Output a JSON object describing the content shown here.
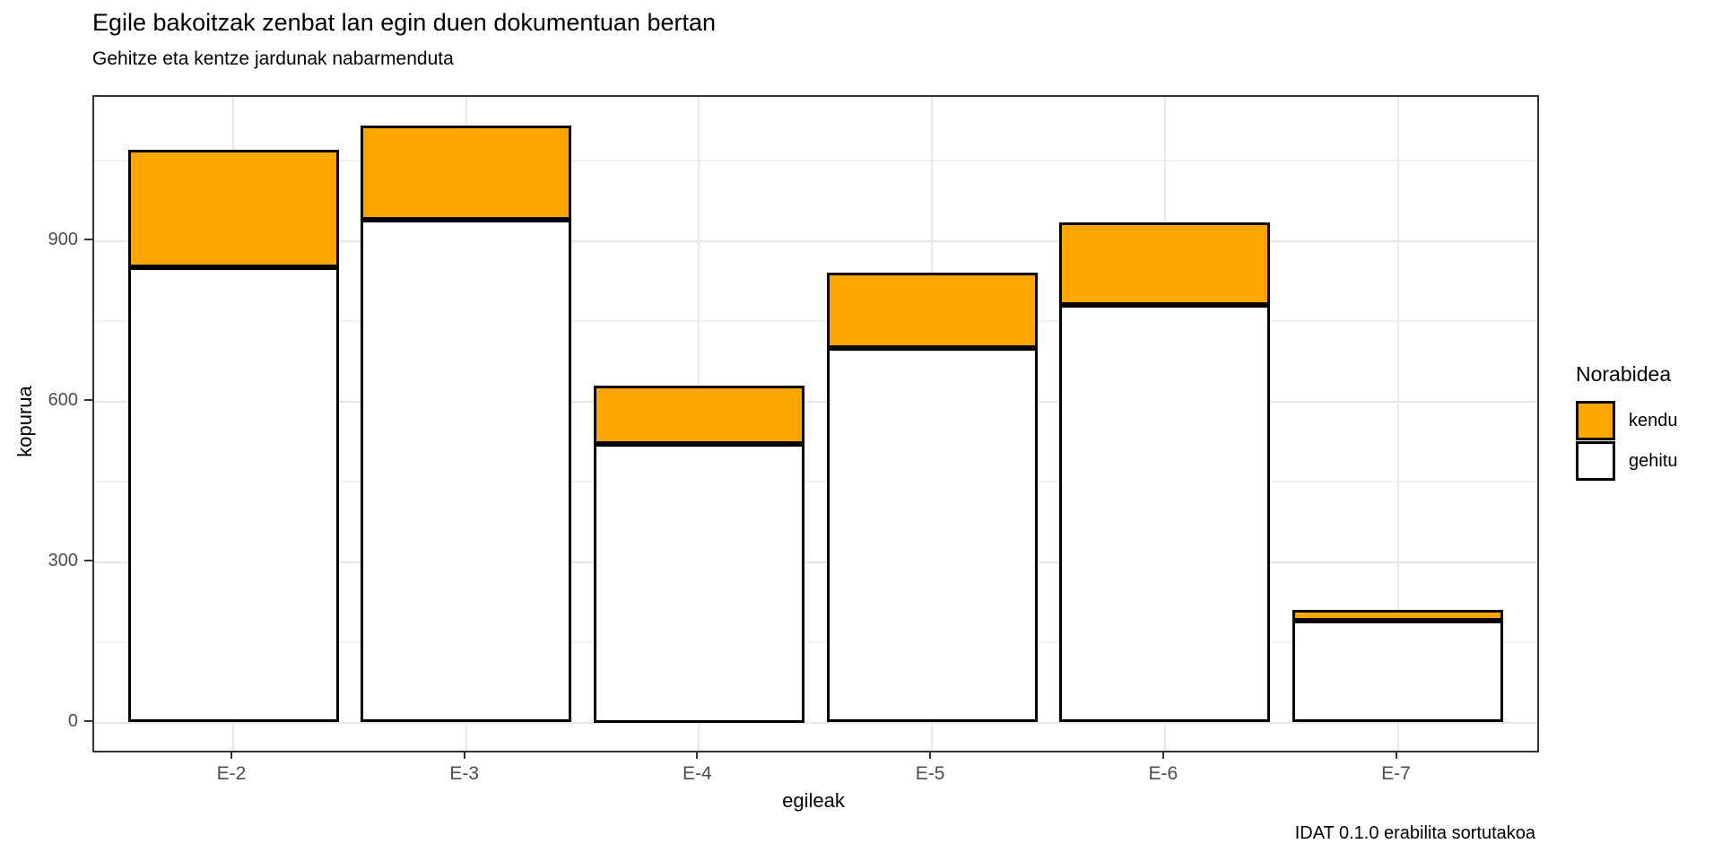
{
  "chart_data": {
    "type": "bar",
    "stacked": true,
    "title": "Egile bakoitzak zenbat lan egin duen dokumentuan bertan",
    "subtitle": "Gehitze eta kentze jardunak nabarmenduta",
    "caption": "IDAT 0.1.0 erabilita sortutakoa",
    "xlabel": "egileak",
    "ylabel": "kopurua",
    "categories": [
      "E-2",
      "E-3",
      "E-4",
      "E-5",
      "E-6",
      "E-7"
    ],
    "series": [
      {
        "name": "gehitu",
        "color": "#FFFFFF",
        "values": [
          850,
          940,
          520,
          700,
          780,
          190
        ]
      },
      {
        "name": "kendu",
        "color": "#FFA500",
        "values": [
          220,
          175,
          110,
          140,
          155,
          20
        ]
      }
    ],
    "totals": [
      1070,
      1115,
      630,
      840,
      935,
      210
    ],
    "y_ticks": [
      0,
      300,
      600,
      900
    ],
    "y_minor_ticks": [
      150,
      450,
      750,
      1050
    ],
    "ylim": [
      0,
      1170
    ],
    "grid": true,
    "bar_outline": "#000000",
    "legend_position": "right"
  },
  "legend": {
    "title": "Norabidea",
    "items": [
      {
        "label": "kendu",
        "color": "#FFA500"
      },
      {
        "label": "gehitu",
        "color": "#FFFFFF"
      }
    ]
  },
  "colors": {
    "kendu": "#FFA500",
    "gehitu": "#FFFFFF",
    "bar_stroke": "#000000",
    "panel_border": "#333333",
    "grid_major": "#e6e6e6",
    "grid_minor": "#f0f0f0",
    "tick_text": "#4d4d4d"
  }
}
